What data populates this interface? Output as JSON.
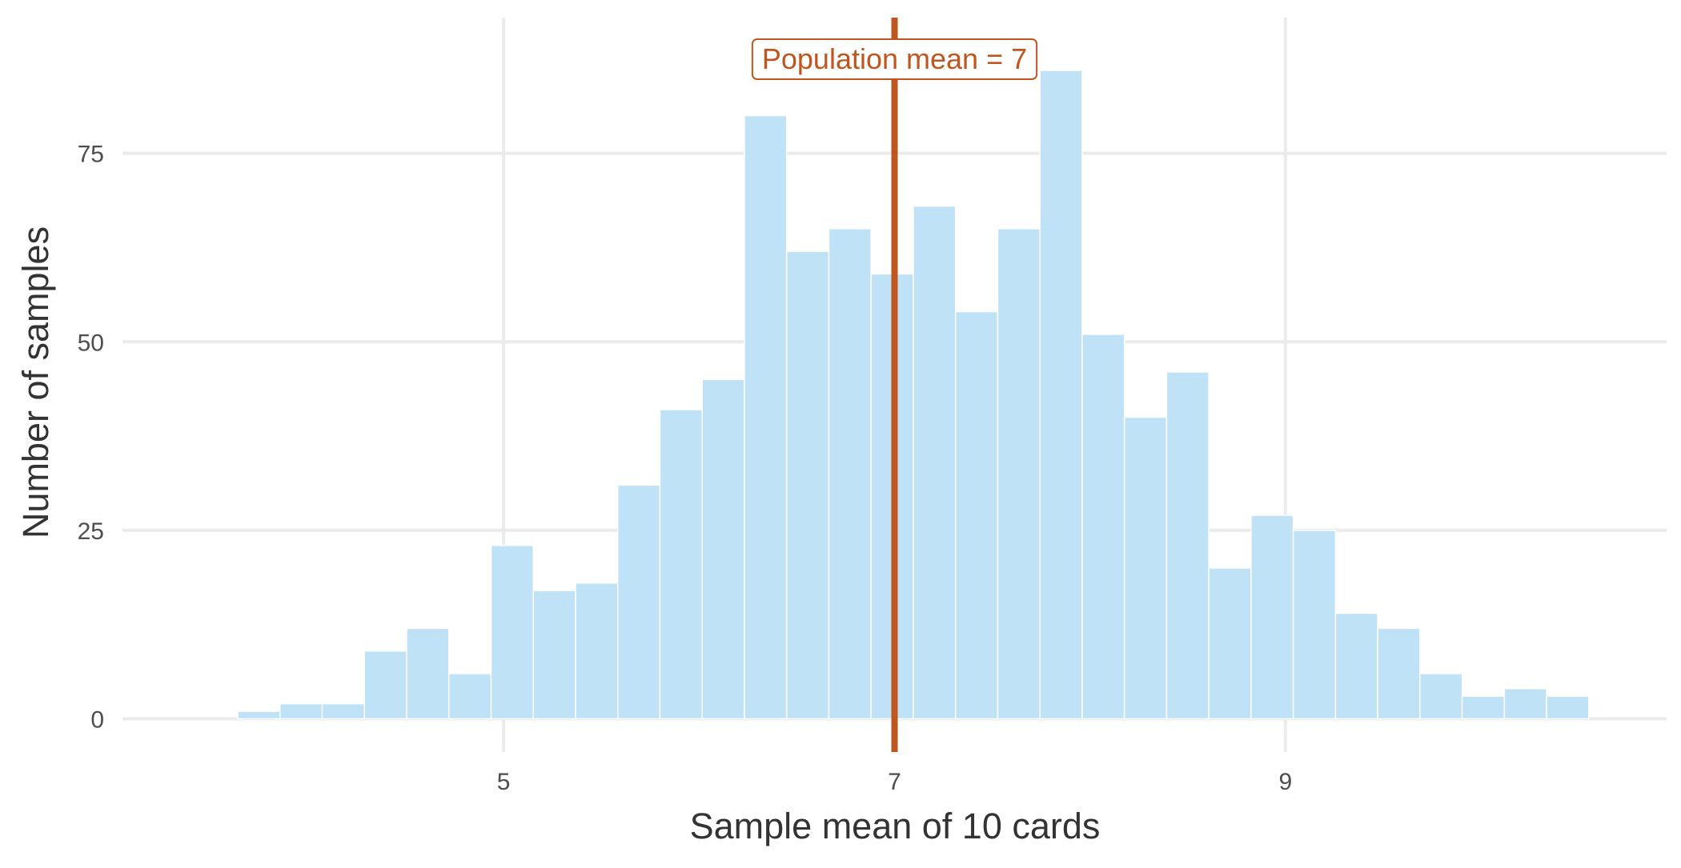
{
  "chart_data": {
    "type": "bar",
    "subtype": "histogram",
    "xlabel": "Sample mean of 10 cards",
    "ylabel": "Number of samples",
    "x_ticks": [
      5,
      7,
      9
    ],
    "y_ticks": [
      0,
      25,
      50,
      75
    ],
    "xlim": [
      3.05,
      10.95
    ],
    "ylim": [
      -4.4,
      93
    ],
    "grid": true,
    "bin_width": 0.216,
    "bars_color": "#bfe2f6",
    "bars": [
      {
        "x0": 3.64,
        "x1": 3.856,
        "count": 1
      },
      {
        "x0": 3.856,
        "x1": 4.072,
        "count": 2
      },
      {
        "x0": 4.072,
        "x1": 4.288,
        "count": 2
      },
      {
        "x0": 4.288,
        "x1": 4.504,
        "count": 9
      },
      {
        "x0": 4.504,
        "x1": 4.72,
        "count": 12
      },
      {
        "x0": 4.72,
        "x1": 4.936,
        "count": 6
      },
      {
        "x0": 4.936,
        "x1": 5.152,
        "count": 23
      },
      {
        "x0": 5.152,
        "x1": 5.368,
        "count": 17
      },
      {
        "x0": 5.368,
        "x1": 5.584,
        "count": 18
      },
      {
        "x0": 5.584,
        "x1": 5.8,
        "count": 31
      },
      {
        "x0": 5.8,
        "x1": 6.016,
        "count": 41
      },
      {
        "x0": 6.016,
        "x1": 6.232,
        "count": 45
      },
      {
        "x0": 6.232,
        "x1": 6.448,
        "count": 80
      },
      {
        "x0": 6.448,
        "x1": 6.664,
        "count": 62
      },
      {
        "x0": 6.664,
        "x1": 6.88,
        "count": 65
      },
      {
        "x0": 6.88,
        "x1": 7.096,
        "count": 59
      },
      {
        "x0": 7.096,
        "x1": 7.312,
        "count": 68
      },
      {
        "x0": 7.312,
        "x1": 7.528,
        "count": 54
      },
      {
        "x0": 7.528,
        "x1": 7.744,
        "count": 65
      },
      {
        "x0": 7.744,
        "x1": 7.96,
        "count": 86
      },
      {
        "x0": 7.96,
        "x1": 8.176,
        "count": 51
      },
      {
        "x0": 8.176,
        "x1": 8.392,
        "count": 40
      },
      {
        "x0": 8.392,
        "x1": 8.608,
        "count": 46
      },
      {
        "x0": 8.608,
        "x1": 8.824,
        "count": 20
      },
      {
        "x0": 8.824,
        "x1": 9.04,
        "count": 27
      },
      {
        "x0": 9.04,
        "x1": 9.256,
        "count": 25
      },
      {
        "x0": 9.256,
        "x1": 9.472,
        "count": 14
      },
      {
        "x0": 9.472,
        "x1": 9.688,
        "count": 12
      },
      {
        "x0": 9.688,
        "x1": 9.904,
        "count": 6
      },
      {
        "x0": 9.904,
        "x1": 10.12,
        "count": 3
      },
      {
        "x0": 10.12,
        "x1": 10.336,
        "count": 4
      },
      {
        "x0": 10.336,
        "x1": 10.552,
        "count": 3
      }
    ],
    "vline": {
      "x": 7,
      "color": "#c0561f",
      "label": "Population mean = 7"
    }
  }
}
